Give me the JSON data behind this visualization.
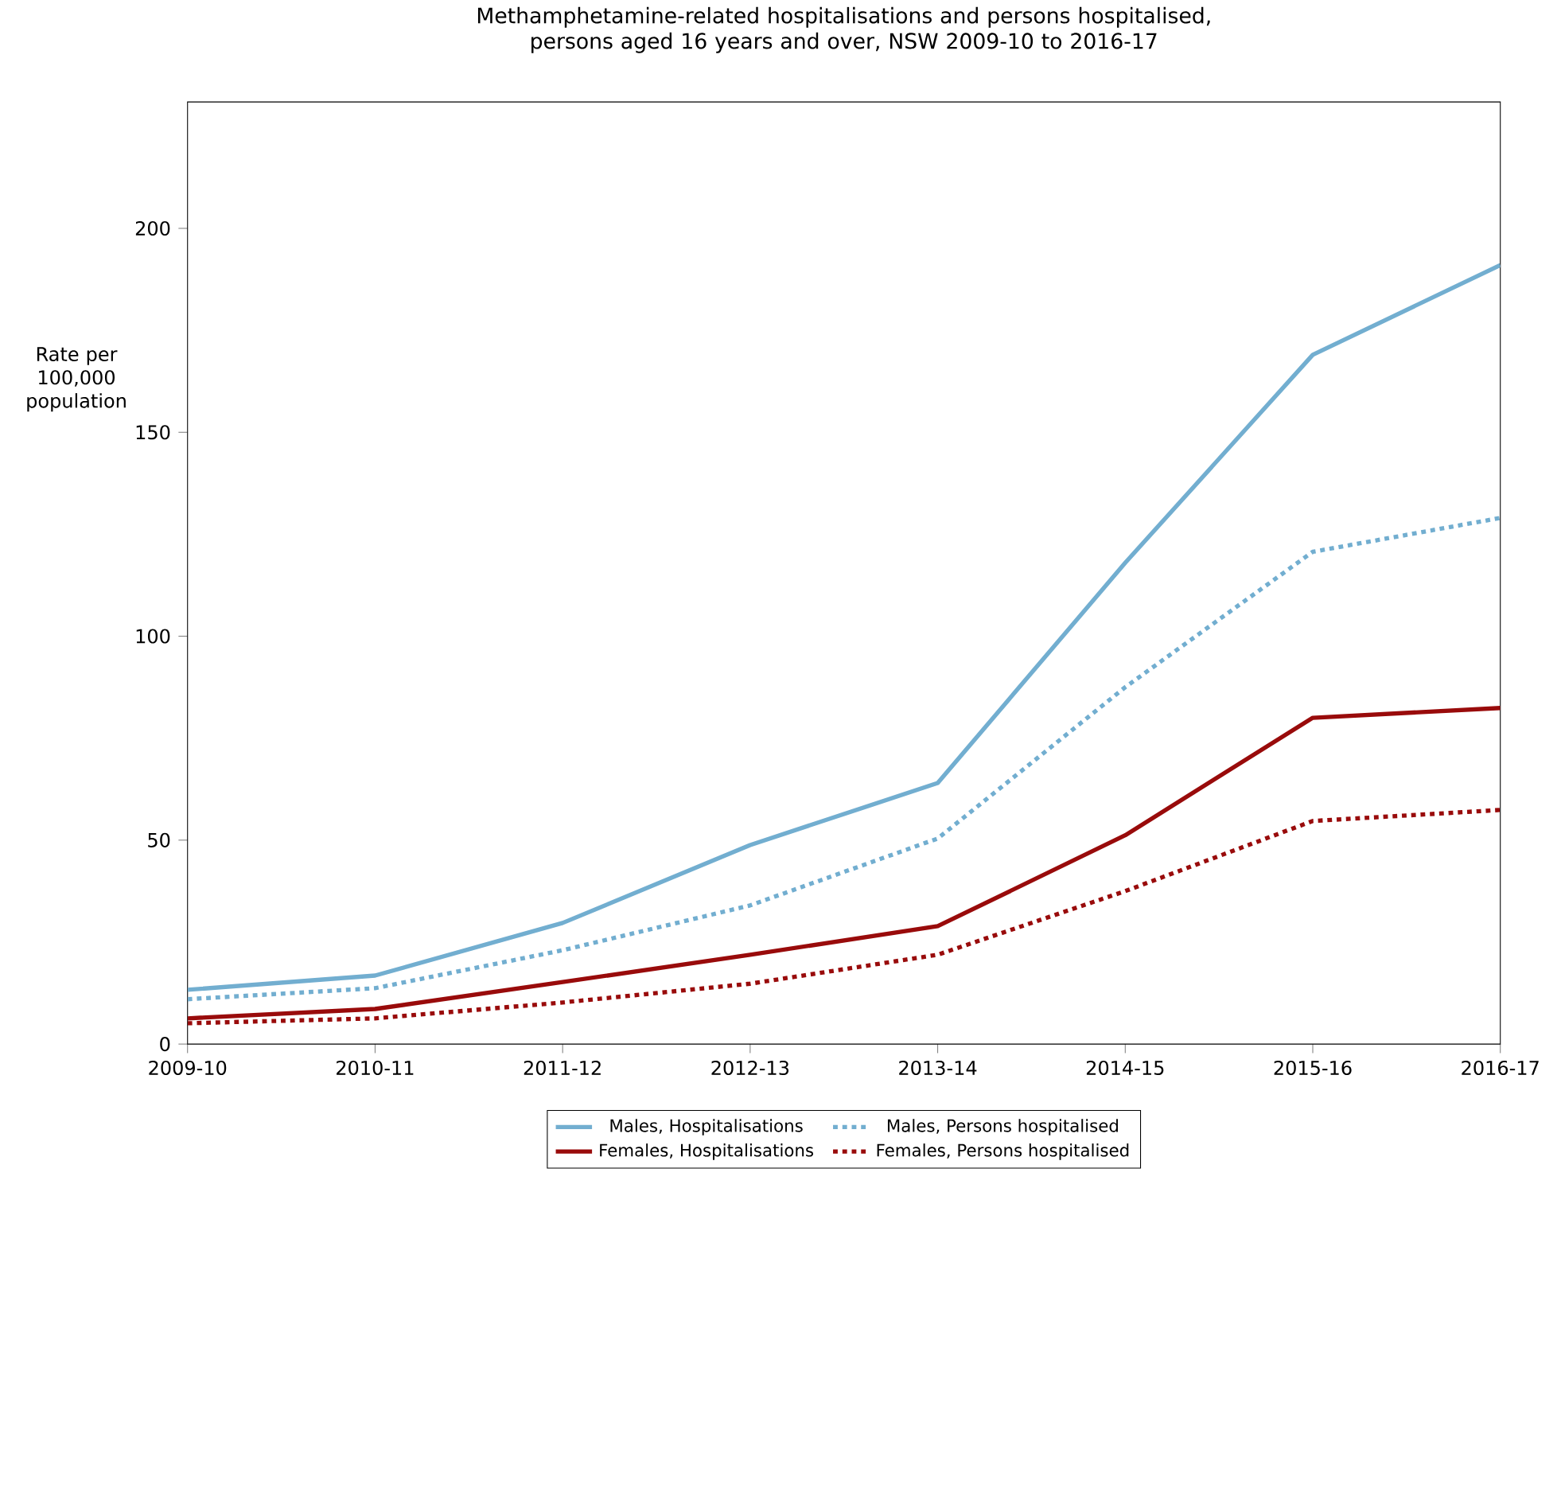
{
  "chart_data": {
    "type": "line",
    "title": "Methamphetamine-related hospitalisations and persons hospitalised, persons aged 16 years and over, NSW 2009-10 to 2016-17",
    "ylabel": "Rate per 100,000 population",
    "categories": [
      "2009-10",
      "2010-11",
      "2011-12",
      "2012-13",
      "2013-14",
      "2014-15",
      "2015-16",
      "2016-17"
    ],
    "series": [
      {
        "name": "Males, Hospitalisations",
        "color": "#72aed0",
        "line_style": "solid",
        "values": [
          13.3,
          16.8,
          29.7,
          48.8,
          64,
          118,
          169,
          191
        ]
      },
      {
        "name": "Males, Persons hospitalised",
        "color": "#72aed0",
        "line_style": "dotted",
        "values": [
          11,
          13.7,
          23,
          34,
          50.4,
          87.5,
          120.7,
          129
        ]
      },
      {
        "name": "Females, Hospitalisations",
        "color": "#990b0b",
        "line_style": "solid",
        "values": [
          6.3,
          8.6,
          15.2,
          21.9,
          28.9,
          51.2,
          80,
          82.4
        ]
      },
      {
        "name": "Females, Persons hospitalised",
        "color": "#990b0b",
        "line_style": "dotted",
        "values": [
          5.1,
          6.3,
          10.2,
          14.8,
          21.9,
          37.5,
          54.7,
          57.4
        ]
      }
    ],
    "ylim": [
      0,
      231
    ],
    "yticks": [
      0,
      50,
      100,
      150,
      200
    ],
    "grid": false,
    "legend": "bottom",
    "marker": "none"
  }
}
